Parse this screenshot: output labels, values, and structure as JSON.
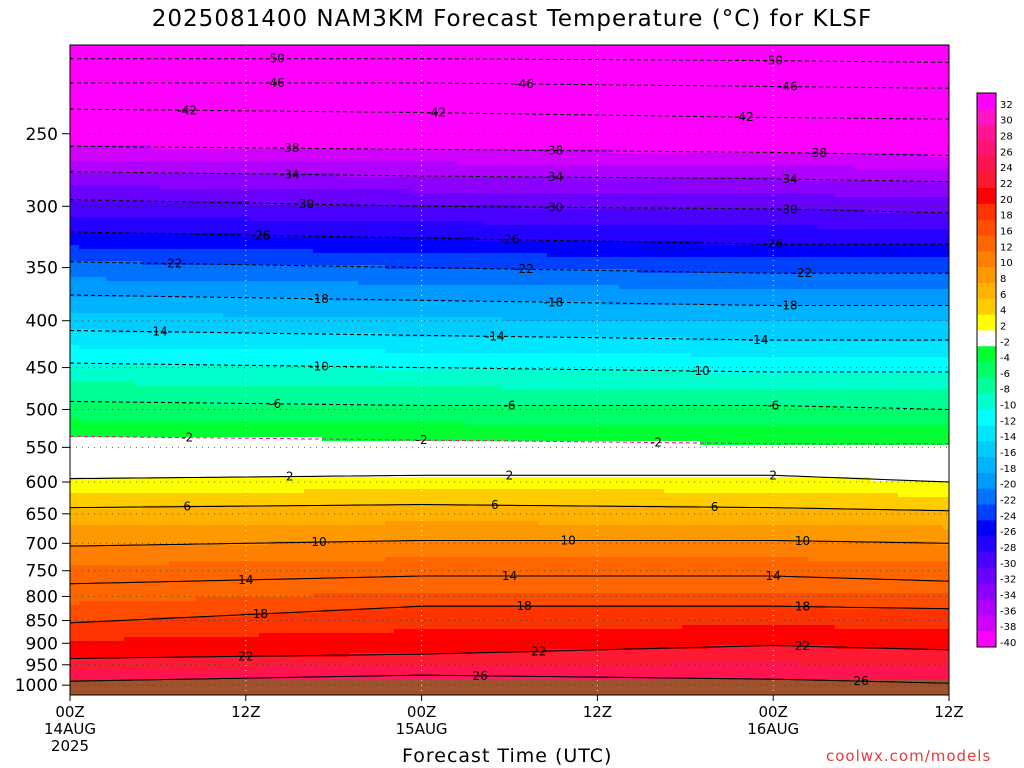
{
  "title": "2025081400 NAM3KM Forecast Temperature (°C) for KLSF",
  "xlabel": "Forecast Time (UTC)",
  "credit": "coolwx.com/models",
  "chart_data": {
    "type": "heatmap",
    "subtype": "filled-contour time-height cross section",
    "x_axis": {
      "ticks": [
        {
          "hours": 0,
          "labels": [
            "00Z",
            "14AUG",
            "2025"
          ]
        },
        {
          "hours": 12,
          "labels": [
            "12Z"
          ]
        },
        {
          "hours": 24,
          "labels": [
            "00Z",
            "15AUG"
          ]
        },
        {
          "hours": 36,
          "labels": [
            "12Z"
          ]
        },
        {
          "hours": 48,
          "labels": [
            "00Z",
            "16AUG"
          ]
        },
        {
          "hours": 60,
          "labels": [
            "12Z"
          ]
        }
      ],
      "range_hours": [
        0,
        60
      ]
    },
    "y_axis": {
      "unit": "hPa",
      "scale": "log",
      "reversed": true,
      "range": [
        1000,
        200
      ],
      "ticks": [
        250,
        300,
        350,
        400,
        450,
        500,
        550,
        600,
        650,
        700,
        750,
        800,
        850,
        900,
        950,
        1000
      ]
    },
    "grid": "dotted",
    "ground_below_hpa": 987,
    "colorbar": {
      "placement": "right",
      "levels": [
        32,
        30,
        28,
        26,
        24,
        22,
        20,
        18,
        16,
        12,
        10,
        8,
        6,
        4,
        2,
        -2,
        -4,
        -6,
        -8,
        -10,
        -12,
        -14,
        -16,
        -18,
        -20,
        -22,
        -24,
        -26,
        -28,
        -30,
        -32,
        -34,
        -36,
        -38,
        -40
      ],
      "colors": [
        "#ff00ff",
        "#ff14c8",
        "#ff1493",
        "#ff1473",
        "#ff1450",
        "#ff1a33",
        "#ff0000",
        "#ff3300",
        "#ff4d00",
        "#ff6600",
        "#ff8000",
        "#ff9900",
        "#ffb300",
        "#ffcc00",
        "#ffff00",
        "#ffffff",
        "#00ff33",
        "#00ff66",
        "#00ff99",
        "#00ffcc",
        "#00ffff",
        "#00e6ff",
        "#00ccff",
        "#00b3ff",
        "#0099ff",
        "#0073ff",
        "#0040ff",
        "#0000ff",
        "#2400ff",
        "#4800ff",
        "#6a00ff",
        "#8c00ff",
        "#b000ff",
        "#d000ff",
        "#ff00ff"
      ]
    },
    "isotherms": [
      {
        "value": 26,
        "levels": [
          {
            "hours": 0,
            "hpa": 990
          },
          {
            "hours": 24,
            "hpa": 975
          },
          {
            "hours": 48,
            "hpa": 985
          },
          {
            "hours": 60,
            "hpa": 995
          }
        ],
        "label_at_hours": [
          28,
          54
        ]
      },
      {
        "value": 22,
        "levels": [
          {
            "hours": 0,
            "hpa": 935
          },
          {
            "hours": 24,
            "hpa": 925
          },
          {
            "hours": 48,
            "hpa": 905
          },
          {
            "hours": 60,
            "hpa": 915
          }
        ],
        "label_at_hours": [
          12,
          32,
          50
        ]
      },
      {
        "value": 18,
        "levels": [
          {
            "hours": 0,
            "hpa": 855
          },
          {
            "hours": 24,
            "hpa": 820
          },
          {
            "hours": 48,
            "hpa": 820
          },
          {
            "hours": 60,
            "hpa": 825
          }
        ],
        "label_at_hours": [
          13,
          31,
          50
        ]
      },
      {
        "value": 14,
        "levels": [
          {
            "hours": 0,
            "hpa": 775
          },
          {
            "hours": 24,
            "hpa": 760
          },
          {
            "hours": 48,
            "hpa": 760
          },
          {
            "hours": 60,
            "hpa": 770
          }
        ],
        "label_at_hours": [
          12,
          30,
          48
        ]
      },
      {
        "value": 10,
        "levels": [
          {
            "hours": 0,
            "hpa": 705
          },
          {
            "hours": 24,
            "hpa": 695
          },
          {
            "hours": 48,
            "hpa": 695
          },
          {
            "hours": 60,
            "hpa": 700
          }
        ],
        "label_at_hours": [
          17,
          34,
          50
        ]
      },
      {
        "value": 6,
        "levels": [
          {
            "hours": 0,
            "hpa": 640
          },
          {
            "hours": 24,
            "hpa": 635
          },
          {
            "hours": 48,
            "hpa": 640
          },
          {
            "hours": 60,
            "hpa": 645
          }
        ],
        "label_at_hours": [
          8,
          29,
          44
        ]
      },
      {
        "value": 2,
        "levels": [
          {
            "hours": 0,
            "hpa": 595
          },
          {
            "hours": 24,
            "hpa": 590
          },
          {
            "hours": 48,
            "hpa": 590
          },
          {
            "hours": 60,
            "hpa": 600
          }
        ],
        "label_at_hours": [
          15,
          30,
          48
        ]
      },
      {
        "value": -2,
        "levels": [
          {
            "hours": 0,
            "hpa": 535
          },
          {
            "hours": 24,
            "hpa": 540
          },
          {
            "hours": 48,
            "hpa": 545
          },
          {
            "hours": 60,
            "hpa": 545
          }
        ],
        "label_at_hours": [
          8,
          24,
          40
        ]
      },
      {
        "value": -6,
        "levels": [
          {
            "hours": 0,
            "hpa": 490
          },
          {
            "hours": 24,
            "hpa": 495
          },
          {
            "hours": 48,
            "hpa": 495
          },
          {
            "hours": 60,
            "hpa": 500
          }
        ],
        "label_at_hours": [
          14,
          30,
          48
        ]
      },
      {
        "value": -10,
        "levels": [
          {
            "hours": 0,
            "hpa": 445
          },
          {
            "hours": 24,
            "hpa": 450
          },
          {
            "hours": 48,
            "hpa": 455
          },
          {
            "hours": 60,
            "hpa": 455
          }
        ],
        "label_at_hours": [
          17,
          43
        ]
      },
      {
        "value": -14,
        "levels": [
          {
            "hours": 0,
            "hpa": 410
          },
          {
            "hours": 24,
            "hpa": 415
          },
          {
            "hours": 48,
            "hpa": 420
          },
          {
            "hours": 60,
            "hpa": 420
          }
        ],
        "label_at_hours": [
          6,
          29,
          47
        ]
      },
      {
        "value": -18,
        "levels": [
          {
            "hours": 0,
            "hpa": 375
          },
          {
            "hours": 24,
            "hpa": 380
          },
          {
            "hours": 48,
            "hpa": 385
          },
          {
            "hours": 60,
            "hpa": 385
          }
        ],
        "label_at_hours": [
          17,
          33,
          49
        ]
      },
      {
        "value": -22,
        "levels": [
          {
            "hours": 0,
            "hpa": 345
          },
          {
            "hours": 24,
            "hpa": 350
          },
          {
            "hours": 48,
            "hpa": 355
          },
          {
            "hours": 60,
            "hpa": 355
          }
        ],
        "label_at_hours": [
          7,
          31,
          50
        ]
      },
      {
        "value": -26,
        "levels": [
          {
            "hours": 0,
            "hpa": 320
          },
          {
            "hours": 24,
            "hpa": 325
          },
          {
            "hours": 48,
            "hpa": 330
          },
          {
            "hours": 60,
            "hpa": 330
          }
        ],
        "label_at_hours": [
          13,
          30,
          48
        ]
      },
      {
        "value": -30,
        "levels": [
          {
            "hours": 0,
            "hpa": 295
          },
          {
            "hours": 24,
            "hpa": 300
          },
          {
            "hours": 48,
            "hpa": 302
          },
          {
            "hours": 60,
            "hpa": 305
          }
        ],
        "label_at_hours": [
          16,
          33,
          49
        ]
      },
      {
        "value": -34,
        "levels": [
          {
            "hours": 0,
            "hpa": 275
          },
          {
            "hours": 24,
            "hpa": 278
          },
          {
            "hours": 48,
            "hpa": 280
          },
          {
            "hours": 60,
            "hpa": 282
          }
        ],
        "label_at_hours": [
          15,
          33,
          49
        ]
      },
      {
        "value": -38,
        "levels": [
          {
            "hours": 0,
            "hpa": 258
          },
          {
            "hours": 24,
            "hpa": 260
          },
          {
            "hours": 48,
            "hpa": 262
          },
          {
            "hours": 60,
            "hpa": 264
          }
        ],
        "label_at_hours": [
          15,
          33,
          51
        ]
      },
      {
        "value": -42,
        "levels": [
          {
            "hours": 0,
            "hpa": 235
          },
          {
            "hours": 24,
            "hpa": 237
          },
          {
            "hours": 48,
            "hpa": 240
          },
          {
            "hours": 60,
            "hpa": 241
          }
        ],
        "label_at_hours": [
          8,
          25,
          46
        ]
      },
      {
        "value": -46,
        "levels": [
          {
            "hours": 0,
            "hpa": 220
          },
          {
            "hours": 24,
            "hpa": 220
          },
          {
            "hours": 48,
            "hpa": 222
          },
          {
            "hours": 60,
            "hpa": 223
          }
        ],
        "label_at_hours": [
          14,
          31,
          49
        ]
      },
      {
        "value": -50,
        "levels": [
          {
            "hours": 0,
            "hpa": 207
          },
          {
            "hours": 24,
            "hpa": 207
          },
          {
            "hours": 48,
            "hpa": 208
          },
          {
            "hours": 60,
            "hpa": 209
          }
        ],
        "label_at_hours": [
          14,
          48
        ]
      }
    ]
  }
}
